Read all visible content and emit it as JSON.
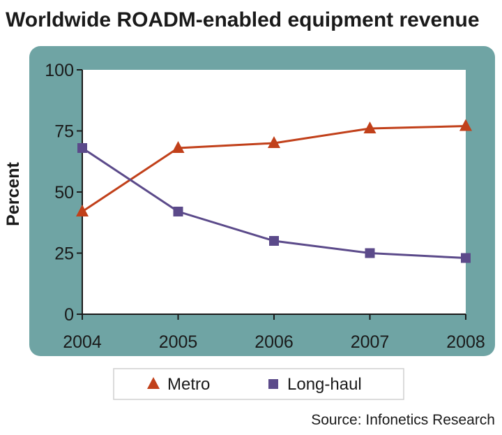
{
  "chart_data": {
    "type": "line",
    "title": "Worldwide ROADM-enabled equipment revenue",
    "xlabel": "",
    "ylabel": "Percent",
    "categories": [
      "2004",
      "2005",
      "2006",
      "2007",
      "2008"
    ],
    "yticks": [
      "0",
      "25",
      "50",
      "75",
      "100"
    ],
    "ylim": [
      0,
      100
    ],
    "grid": false,
    "legend_position": "bottom",
    "series": [
      {
        "name": "Metro",
        "marker": "triangle",
        "color": "#c1401a",
        "values": [
          42,
          68,
          70,
          76,
          77
        ]
      },
      {
        "name": "Long-haul",
        "marker": "square",
        "color": "#5b4a8a",
        "values": [
          68,
          42,
          30,
          25,
          23
        ]
      }
    ],
    "source": "Source: Infonetics Research"
  },
  "colors": {
    "frame": "#6fa4a4",
    "plot_background": "#ffffff",
    "axis": "#1a1a1a"
  }
}
